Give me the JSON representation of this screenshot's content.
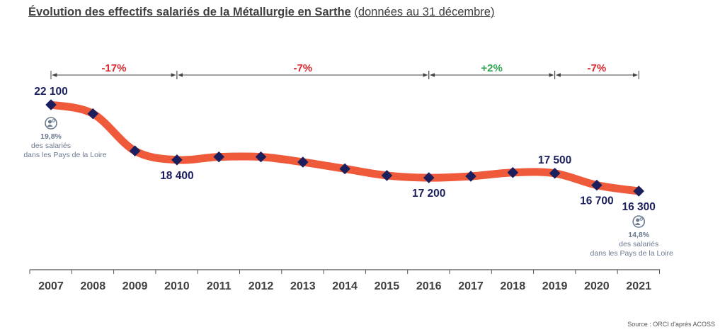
{
  "title": "Évolution des effectifs salariés de la Métallurgie en Sarthe",
  "subtitle": "(données au 31 décembre)",
  "source": "Source : ORCI d'après ACOSS",
  "colors": {
    "line": "#EF5A3A",
    "marker": "#1B1F5E",
    "negative": "#D9262B",
    "positive": "#2FA84F",
    "axis": "#555555",
    "text": "#404040",
    "label": "#1B1F5E",
    "annotation": "#6B7A8F"
  },
  "chart_data": {
    "type": "line",
    "title": "Évolution des effectifs salariés de la Métallurgie en Sarthe",
    "subtitle": "(données au 31 décembre)",
    "categories": [
      "2007",
      "2008",
      "2009",
      "2010",
      "2011",
      "2012",
      "2013",
      "2014",
      "2015",
      "2016",
      "2017",
      "2018",
      "2019",
      "2020",
      "2021"
    ],
    "series": [
      {
        "values": [
          22100,
          21500,
          19000,
          18400,
          18600,
          18600,
          18250,
          17800,
          17350,
          17200,
          17300,
          17550,
          17500,
          16700,
          16300
        ]
      }
    ],
    "ylim": [
      15000,
      23000
    ],
    "data_labels": [
      {
        "index": 0,
        "text": "22 100",
        "position": "above"
      },
      {
        "index": 3,
        "text": "18 400",
        "position": "below"
      },
      {
        "index": 9,
        "text": "17 200",
        "position": "below"
      },
      {
        "index": 12,
        "text": "17 500",
        "position": "above"
      },
      {
        "index": 13,
        "text": "16 700",
        "position": "below"
      },
      {
        "index": 14,
        "text": "16 300",
        "position": "below"
      }
    ],
    "periods": [
      {
        "from": 0,
        "to": 3,
        "label": "-17%",
        "sign": "negative"
      },
      {
        "from": 3,
        "to": 9,
        "label": "-7%",
        "sign": "negative"
      },
      {
        "from": 9,
        "to": 12,
        "label": "+2%",
        "sign": "positive"
      },
      {
        "from": 12,
        "to": 14,
        "label": "-7%",
        "sign": "negative"
      }
    ],
    "annotations": [
      {
        "index": 0,
        "icon": "people-icon",
        "percent": "19,8%",
        "line1": "des salariés",
        "line2": "dans les Pays de la Loire"
      },
      {
        "index": 14,
        "icon": "people-icon",
        "percent": "14,8%",
        "line1": "des salariés",
        "line2": "dans les Pays de la Loire"
      }
    ],
    "grid": false,
    "legend": "none"
  }
}
